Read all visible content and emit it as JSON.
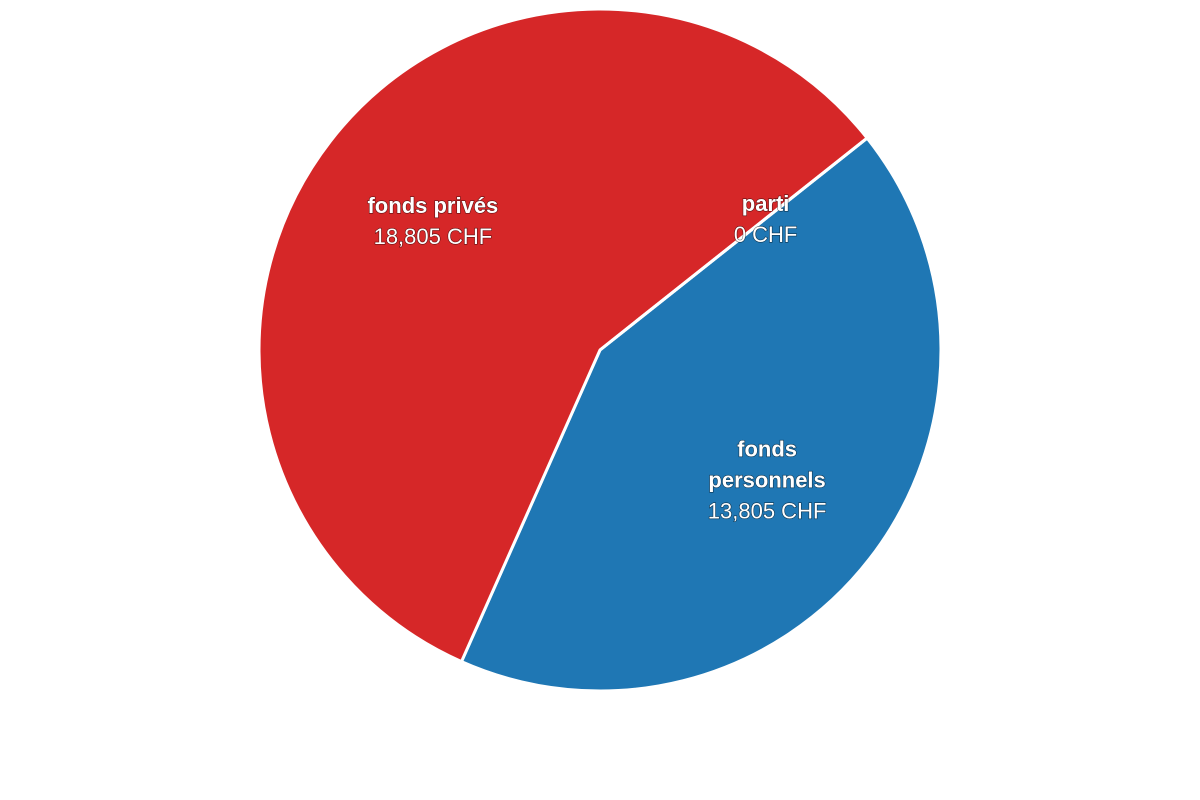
{
  "chart_data": {
    "type": "pie",
    "currency": "CHF",
    "slices": [
      {
        "name": "fonds personnels",
        "value": 13805,
        "value_label": "13,805 CHF",
        "color": "#1f77b4",
        "name_lines": [
          "fonds",
          "personnels"
        ]
      },
      {
        "name": "fonds privés",
        "value": 18805,
        "value_label": "18,805 CHF",
        "color": "#d62728",
        "name_lines": [
          "fonds privés"
        ]
      },
      {
        "name": "parti",
        "value": 0,
        "value_label": "0 CHF",
        "color": "#ff7f0e",
        "name_lines": [
          "parti"
        ]
      }
    ]
  }
}
